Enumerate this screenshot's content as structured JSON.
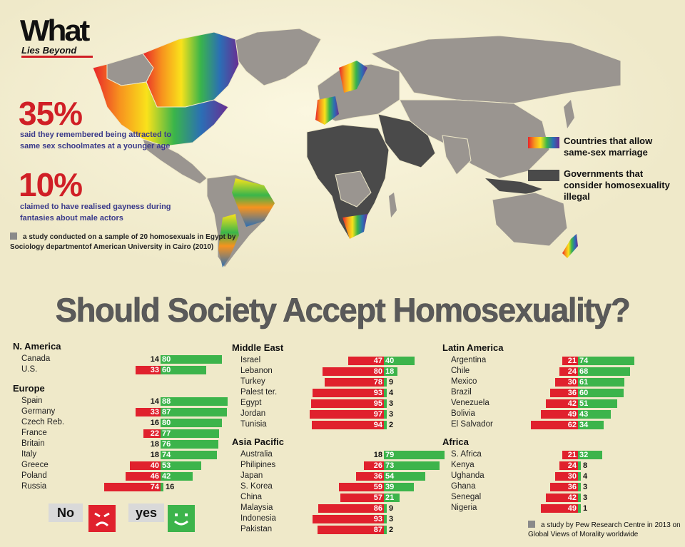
{
  "logo": {
    "line1": "What",
    "line2": "Lies Beyond"
  },
  "stat1": {
    "value": "35%",
    "text": "said they remembered being attracted to same sex schoolmates at a younger age"
  },
  "stat2": {
    "value": "10%",
    "text": "claimed to have realised gayness during fantasies about male actors"
  },
  "study_note": "a study conducted on a sample of 20 homosexuals in Egypt by Sociology departmentof American  University in Cairo (2010)",
  "legend": {
    "rainbow": "Countries that allow same-sex marriage",
    "dark": "Governments that consider homosexuality illegal",
    "rainbow_color": "#e8232a",
    "dark_color": "#4a4a4a"
  },
  "headline": "Should Society Accept Homosexuality?",
  "colors": {
    "no": "#e0212d",
    "yes": "#3cb44b"
  },
  "regions": [
    {
      "name": "N. America",
      "rows": [
        {
          "country": "Canada",
          "no": 14,
          "yes": 80
        },
        {
          "country": "U.S.",
          "no": 33,
          "yes": 60
        }
      ]
    },
    {
      "name": "Europe",
      "rows": [
        {
          "country": "Spain",
          "no": 14,
          "yes": 88
        },
        {
          "country": "Germany",
          "no": 33,
          "yes": 87
        },
        {
          "country": "Czech Reb.",
          "no": 16,
          "yes": 80
        },
        {
          "country": "France",
          "no": 22,
          "yes": 77
        },
        {
          "country": "Britain",
          "no": 18,
          "yes": 76
        },
        {
          "country": "Italy",
          "no": 18,
          "yes": 74
        },
        {
          "country": "Greece",
          "no": 40,
          "yes": 53
        },
        {
          "country": "Poland",
          "no": 46,
          "yes": 42
        },
        {
          "country": "Russia",
          "no": 74,
          "yes": 16
        }
      ]
    },
    {
      "name": "Middle East",
      "rows": [
        {
          "country": "Israel",
          "no": 47,
          "yes": 40
        },
        {
          "country": "Lebanon",
          "no": 80,
          "yes": 18
        },
        {
          "country": "Turkey",
          "no": 78,
          "yes": 9
        },
        {
          "country": "Palest ter.",
          "no": 93,
          "yes": 4
        },
        {
          "country": "Egypt",
          "no": 95,
          "yes": 3
        },
        {
          "country": "Jordan",
          "no": 97,
          "yes": 3
        },
        {
          "country": "Tunisia",
          "no": 94,
          "yes": 2
        }
      ]
    },
    {
      "name": "Asia Pacific",
      "rows": [
        {
          "country": "Australia",
          "no": 18,
          "yes": 79
        },
        {
          "country": "Philipines",
          "no": 26,
          "yes": 73
        },
        {
          "country": "Japan",
          "no": 36,
          "yes": 54
        },
        {
          "country": "S. Korea",
          "no": 59,
          "yes": 39
        },
        {
          "country": "China",
          "no": 57,
          "yes": 21
        },
        {
          "country": "Malaysia",
          "no": 86,
          "yes": 9
        },
        {
          "country": "Indonesia",
          "no": 93,
          "yes": 3
        },
        {
          "country": "Pakistan",
          "no": 87,
          "yes": 2
        }
      ]
    },
    {
      "name": "Latin America",
      "rows": [
        {
          "country": "Argentina",
          "no": 21,
          "yes": 74
        },
        {
          "country": "Chile",
          "no": 24,
          "yes": 68
        },
        {
          "country": "Mexico",
          "no": 30,
          "yes": 61
        },
        {
          "country": "Brazil",
          "no": 36,
          "yes": 60
        },
        {
          "country": "Venezuela",
          "no": 42,
          "yes": 51
        },
        {
          "country": "Bolivia",
          "no": 49,
          "yes": 43
        },
        {
          "country": "El Salvador",
          "no": 62,
          "yes": 34
        }
      ]
    },
    {
      "name": "Africa",
      "rows": [
        {
          "country": "S. Africa",
          "no": 21,
          "yes": 32
        },
        {
          "country": "Kenya",
          "no": 24,
          "yes": 8
        },
        {
          "country": "Ughanda",
          "no": 30,
          "yes": 4
        },
        {
          "country": "Ghana",
          "no": 36,
          "yes": 3
        },
        {
          "country": "Senegal",
          "no": 42,
          "yes": 3
        },
        {
          "country": "Nigeria",
          "no": 49,
          "yes": 1
        }
      ]
    }
  ],
  "key": {
    "no": "No",
    "yes": "yes"
  },
  "source_note": "a study by Pew Research Centre in 2013 on Global Views of Morality worldwide"
}
